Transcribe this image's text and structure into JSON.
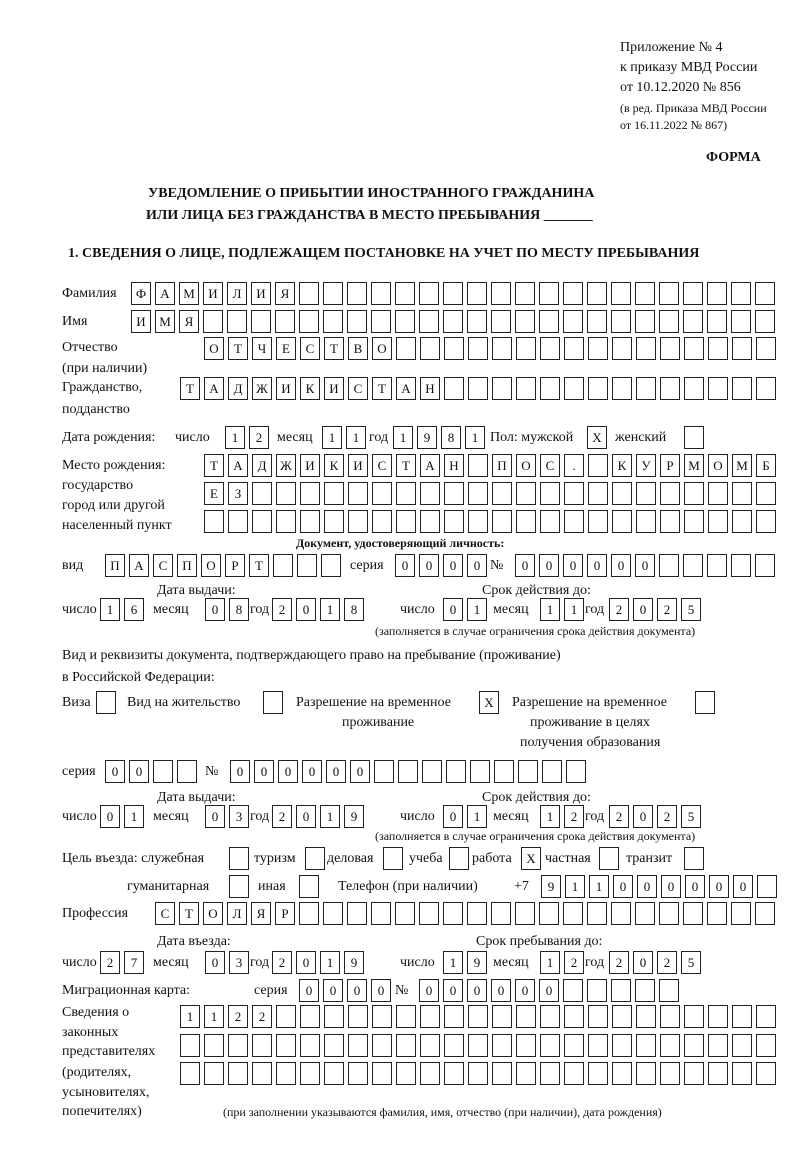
{
  "header": {
    "appendix": [
      "Приложение № 4",
      "к приказу МВД России",
      "от 10.12.2020 № 856"
    ],
    "revision": [
      "(в ред. Приказа МВД России",
      "от 16.11.2022 № 867)"
    ],
    "form_label": "ФОРМА",
    "title_1": "УВЕДОМЛЕНИЕ О ПРИБЫТИИ ИНОСТРАННОГО ГРАЖДАНИНА",
    "title_2": "ИЛИ ЛИЦА БЕЗ ГРАЖДАНСТВА В МЕСТО ПРЕБЫВАНИЯ _______",
    "section_1": "1. СВЕДЕНИЯ О ЛИЦЕ, ПОДЛЕЖАЩЕМ ПОСТАНОВКЕ НА УЧЕТ ПО МЕСТУ ПРЕБЫВАНИЯ"
  },
  "labels": {
    "surname": "Фамилия",
    "name": "Имя",
    "patronymic": "Отчество",
    "patronymic_note": "(при наличии)",
    "citizenship": "Гражданство,",
    "citizenship_2": "подданство",
    "birth_date": "Дата рождения:",
    "day": "число",
    "month": "месяц",
    "year": "год",
    "sex": "Пол: мужской",
    "female": "женский",
    "birth_place": [
      "Место рождения:",
      "государство",
      "город или другой",
      "населенный пункт"
    ],
    "id_document": "Документ, удостоверяющий личность:",
    "kind": "вид",
    "series": "серия",
    "number": "№",
    "issue_date": "Дата выдачи:",
    "valid_until": "Срок действия до:",
    "valid_note": "(заполняется в случае ограничения срока действия документа)",
    "stay_doc": "Вид и реквизиты документа, подтверждающего право на пребывание (проживание)",
    "stay_doc_2": "в Российской Федерации:",
    "visa": "Виза",
    "residence_permit": "Вид на жительство",
    "temp_residence": [
      "Разрешение на временное",
      "проживание"
    ],
    "temp_residence_edu": [
      "Разрешение на временное",
      "проживание в целях",
      "получения образования"
    ],
    "purpose": "Цель въезда: служебная",
    "tourism": "туризм",
    "business": "деловая",
    "study": "учеба",
    "work": "работа",
    "private": "частная",
    "transit": "транзит",
    "humanitarian": "гуманитарная",
    "other": "иная",
    "phone": "Телефон (при наличии)",
    "phone_prefix": "+7",
    "profession": "Профессия",
    "entry_date": "Дата въезда:",
    "stay_until": "Срок пребывания до:",
    "migration_card": "Миграционная карта:",
    "representatives": [
      "Сведения о",
      "законных",
      "представителях",
      "(родителях,",
      "усыновителях,",
      "попечителях)"
    ],
    "representatives_note": "(при заполнении указываются фамилия, имя, отчество (при наличии), дата рождения)"
  },
  "fields": {
    "surname": "ФАМИЛИЯ",
    "name": "ИМЯ",
    "patronymic": "ОТЧЕСТВО",
    "citizenship": "ТАДЖИКИСТАН",
    "birth_day": "12",
    "birth_month": "11",
    "birth_year": "1981",
    "sex_male": "X",
    "sex_female": "",
    "birth_place_1": "ТАДЖИКИСТАН ПОС. КУРМОМБ",
    "birth_place_2": "ЕЗ",
    "birth_place_3": "",
    "id_kind": "ПАСПОРТ",
    "id_series": "0000",
    "id_number": "000000",
    "id_issue_day": "16",
    "id_issue_month": "08",
    "id_issue_year": "2018",
    "id_valid_day": "01",
    "id_valid_month": "11",
    "id_valid_year": "2025",
    "visa": "",
    "residence_permit": "",
    "temp_residence": "X",
    "temp_residence_edu": "",
    "stay_series": "00",
    "stay_number": "000000",
    "stay_issue_day": "01",
    "stay_issue_month": "03",
    "stay_issue_year": "2019",
    "stay_valid_day": "01",
    "stay_valid_month": "12",
    "stay_valid_year": "2025",
    "purpose_official": "",
    "purpose_tourism": "",
    "purpose_business": "",
    "purpose_study": "",
    "purpose_work": "X",
    "purpose_private": "",
    "purpose_transit": "",
    "purpose_humanitarian": "",
    "purpose_other": "",
    "phone": "911000000",
    "profession": "СТОЛЯР",
    "entry_day": "27",
    "entry_month": "03",
    "entry_year": "2019",
    "stay_until_day": "19",
    "stay_until_month": "12",
    "stay_until_year": "2025",
    "migration_series": "0000",
    "migration_number": "000000",
    "representatives_1": "1122",
    "representatives_2": "",
    "representatives_3": ""
  }
}
